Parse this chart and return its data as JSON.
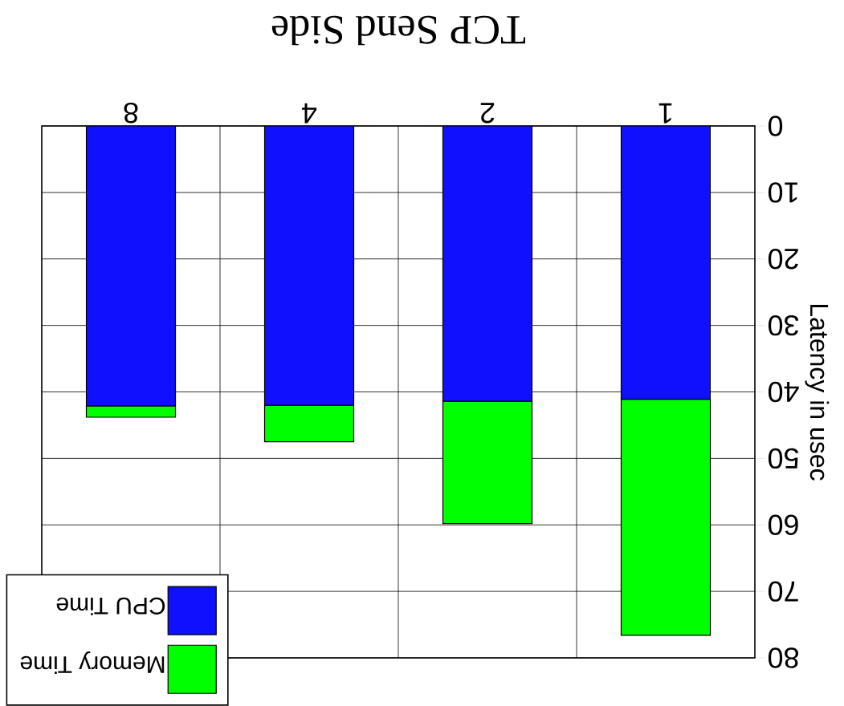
{
  "chart_data": {
    "type": "bar",
    "title": "TCP Send Side",
    "ylabel": "Latency in usec",
    "categories": [
      "8",
      "4",
      "2",
      "1"
    ],
    "series": [
      {
        "name": "CPU Time",
        "color": "#1010ff",
        "values": [
          42.1,
          42,
          41.4,
          41.1
        ]
      },
      {
        "name": "Memory Time",
        "color": "#00ff00",
        "values": [
          1.7,
          5.5,
          18.4,
          35.5
        ]
      }
    ],
    "stacked": true,
    "ylim": [
      80,
      0
    ],
    "yticks": [
      0,
      10,
      20,
      30,
      40,
      50,
      60,
      70,
      80
    ],
    "grid": true,
    "legend": "bottom left"
  }
}
